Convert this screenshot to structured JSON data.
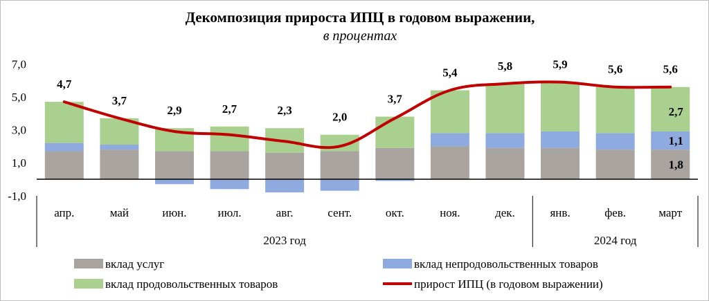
{
  "chart_data": {
    "type": "bar",
    "title": "Декомпозиция прироста ИПЦ в годовом выражении,",
    "subtitle": "в процентах",
    "categories": [
      "апр.",
      "май",
      "июн.",
      "июл.",
      "авг.",
      "сент.",
      "окт.",
      "ноя.",
      "дек.",
      "янв.",
      "фев.",
      "март"
    ],
    "year_groups": [
      {
        "label": "2023 год",
        "from": 0,
        "to": 8
      },
      {
        "label": "2024 год",
        "from": 9,
        "to": 11
      }
    ],
    "ylim": [
      -1.8,
      7.7
    ],
    "yticks": [
      {
        "value": -1.0,
        "label": "-1,0"
      },
      {
        "value": 1.0,
        "label": "1,0"
      },
      {
        "value": 3.0,
        "label": "3,0"
      },
      {
        "value": 5.0,
        "label": "5,0"
      },
      {
        "value": 7.0,
        "label": "7,0"
      }
    ],
    "series": [
      {
        "name": "вклад услуг",
        "color": "#a9a4a0",
        "values": [
          1.7,
          1.8,
          1.7,
          1.7,
          1.6,
          1.7,
          1.9,
          2.0,
          1.9,
          1.9,
          1.8,
          1.8
        ]
      },
      {
        "name": "вклад непродовольственных товаров",
        "color": "#8eaade",
        "values": [
          0.5,
          0.3,
          -0.3,
          -0.6,
          -0.8,
          -0.7,
          -0.1,
          0.8,
          0.9,
          1.0,
          1.0,
          1.1
        ]
      },
      {
        "name": "вклад продовольственных товаров",
        "color": "#a9d08e",
        "values": [
          2.5,
          1.6,
          1.4,
          1.5,
          1.5,
          1.0,
          1.9,
          2.6,
          3.0,
          3.0,
          2.8,
          2.7
        ]
      },
      {
        "name": "прирост ИПЦ (в годовом выражении)",
        "color": "#c00000",
        "type": "line",
        "values": [
          4.7,
          3.7,
          2.9,
          2.7,
          2.3,
          2.0,
          3.7,
          5.4,
          5.8,
          5.9,
          5.6,
          5.6
        ]
      }
    ],
    "total_labels": [
      "4,7",
      "3,7",
      "2,9",
      "2,7",
      "2,3",
      "2,0",
      "3,7",
      "5,4",
      "5,8",
      "5,9",
      "5,6",
      "5,6"
    ],
    "last_bar_component_labels": {
      "services": "1,8",
      "nonfood": "1,1",
      "food": "2,7"
    },
    "legend_position": "bottom",
    "grid": false
  }
}
